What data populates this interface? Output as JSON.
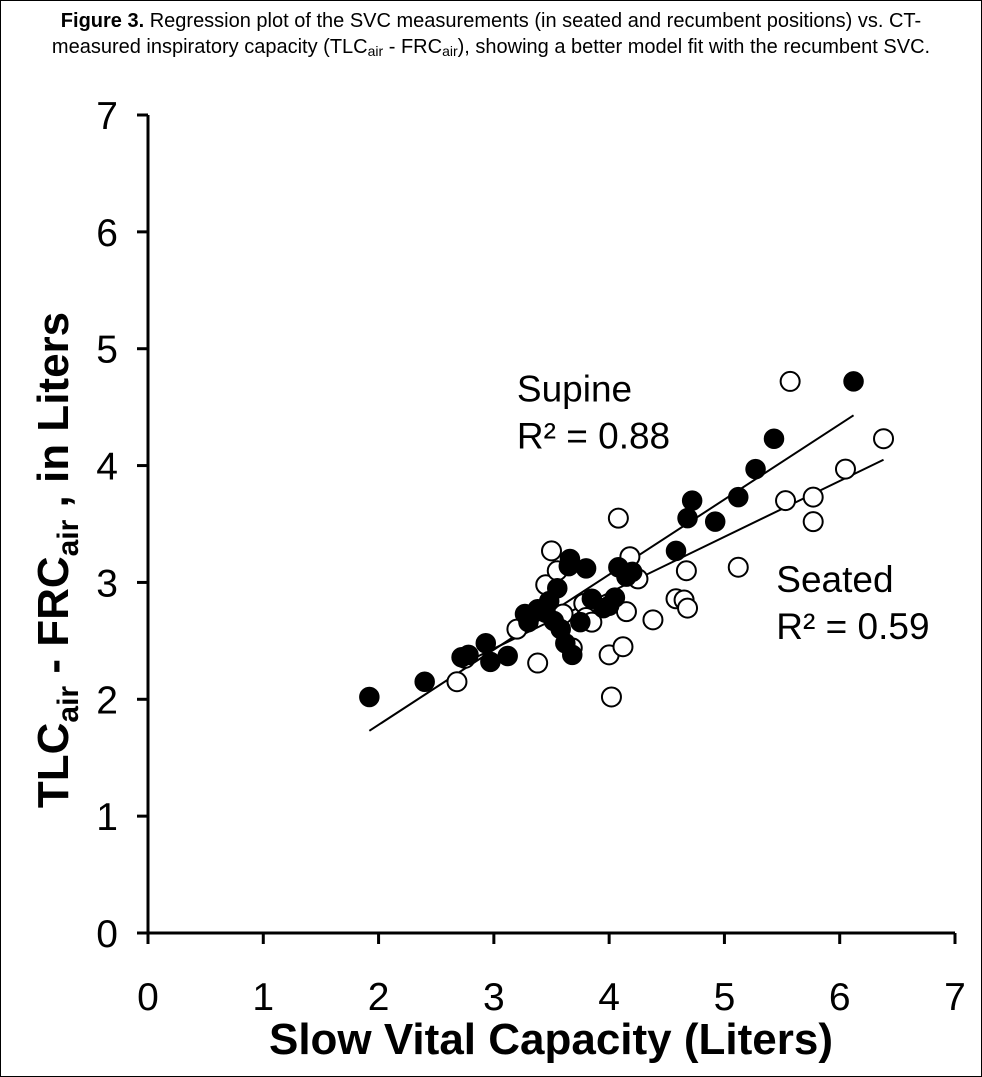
{
  "caption": {
    "prefix": "Figure 3.",
    "part1": " Regression plot of the SVC measurements (in seated and recumbent positions) vs. CT-measured inspiratory capacity (TLC",
    "sub1": "air",
    "part2": " - FRC",
    "sub2": "air",
    "part3": "), showing a better model fit with the recumbent SVC."
  },
  "chart_data": {
    "type": "scatter",
    "xlabel": "Slow Vital Capacity (Liters)",
    "ylabel": {
      "t1": "TLC",
      "s1": "air",
      "t2": " - FRC",
      "s2": "air",
      "t3": " , in Liters"
    },
    "xlim": [
      0,
      7
    ],
    "ylim": [
      0,
      7
    ],
    "x_ticks": [
      0,
      1,
      2,
      3,
      4,
      5,
      6,
      7
    ],
    "y_ticks": [
      0,
      1,
      2,
      3,
      4,
      5,
      6,
      7
    ],
    "grid": false,
    "annotations": [
      {
        "series": "supine",
        "line1": "Supine",
        "line2": "R² = 0.88",
        "x": 3.2,
        "y": 4.55
      },
      {
        "series": "seated",
        "line1": "Seated",
        "line2": "R² = 0.59",
        "x": 5.45,
        "y": 2.92
      }
    ],
    "series": [
      {
        "key": "supine",
        "marker": "filled-circle",
        "color": "#000000",
        "trendline": {
          "x": [
            1.92,
            6.12
          ],
          "y": [
            1.73,
            4.43
          ]
        },
        "points": [
          [
            1.92,
            2.02
          ],
          [
            2.4,
            2.15
          ],
          [
            2.72,
            2.36
          ],
          [
            2.78,
            2.38
          ],
          [
            2.93,
            2.48
          ],
          [
            2.97,
            2.32
          ],
          [
            3.12,
            2.37
          ],
          [
            3.27,
            2.73
          ],
          [
            3.3,
            2.66
          ],
          [
            3.38,
            2.77
          ],
          [
            3.45,
            2.74
          ],
          [
            3.48,
            2.84
          ],
          [
            3.52,
            2.67
          ],
          [
            3.55,
            2.95
          ],
          [
            3.58,
            2.6
          ],
          [
            3.62,
            2.48
          ],
          [
            3.65,
            3.14
          ],
          [
            3.66,
            3.2
          ],
          [
            3.68,
            2.38
          ],
          [
            3.75,
            2.66
          ],
          [
            3.8,
            3.12
          ],
          [
            3.85,
            2.86
          ],
          [
            3.95,
            2.78
          ],
          [
            4.0,
            2.8
          ],
          [
            4.05,
            2.87
          ],
          [
            4.08,
            3.13
          ],
          [
            4.15,
            3.05
          ],
          [
            4.2,
            3.09
          ],
          [
            4.58,
            3.27
          ],
          [
            4.68,
            3.55
          ],
          [
            4.72,
            3.7
          ],
          [
            4.92,
            3.52
          ],
          [
            5.12,
            3.73
          ],
          [
            5.27,
            3.97
          ],
          [
            5.43,
            4.23
          ],
          [
            6.12,
            4.72
          ]
        ]
      },
      {
        "key": "seated",
        "marker": "open-circle",
        "color": "#000000",
        "trendline": {
          "x": [
            2.72,
            6.38
          ],
          "y": [
            2.3,
            4.05
          ]
        },
        "points": [
          [
            2.68,
            2.15
          ],
          [
            2.75,
            2.35
          ],
          [
            3.2,
            2.6
          ],
          [
            3.38,
            2.31
          ],
          [
            3.45,
            2.98
          ],
          [
            3.5,
            3.27
          ],
          [
            3.55,
            3.1
          ],
          [
            3.6,
            2.73
          ],
          [
            3.68,
            2.44
          ],
          [
            3.78,
            2.82
          ],
          [
            3.8,
            2.7
          ],
          [
            3.85,
            2.66
          ],
          [
            4.0,
            2.38
          ],
          [
            4.02,
            2.02
          ],
          [
            4.08,
            3.55
          ],
          [
            4.12,
            2.45
          ],
          [
            4.15,
            2.75
          ],
          [
            4.18,
            3.22
          ],
          [
            4.25,
            3.03
          ],
          [
            4.38,
            2.68
          ],
          [
            4.58,
            2.86
          ],
          [
            4.65,
            2.85
          ],
          [
            4.67,
            3.1
          ],
          [
            4.68,
            2.78
          ],
          [
            5.12,
            3.13
          ],
          [
            5.53,
            3.7
          ],
          [
            5.57,
            4.72
          ],
          [
            5.77,
            3.73
          ],
          [
            5.77,
            3.52
          ],
          [
            6.05,
            3.97
          ],
          [
            6.38,
            4.23
          ]
        ]
      }
    ]
  }
}
